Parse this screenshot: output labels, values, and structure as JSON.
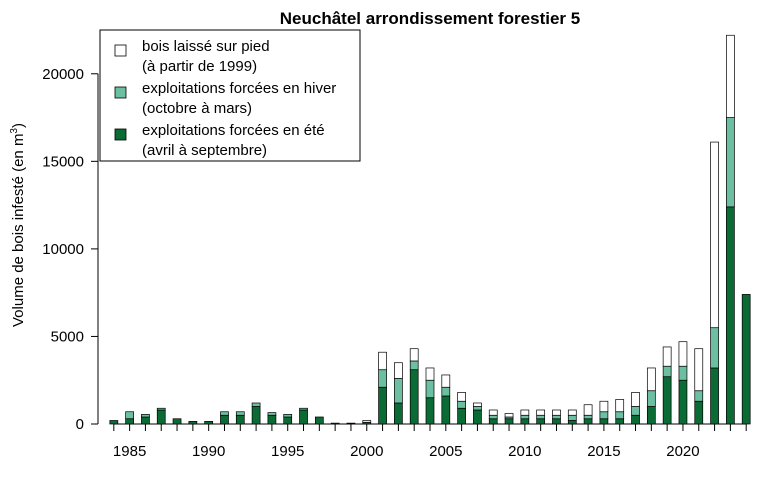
{
  "chart_data": {
    "type": "bar",
    "stacked": true,
    "title": "Neuchâtel arrondissement forestier 5",
    "ylabel": "Volume de bois infesté (en m",
    "ylabel_superscript": "3",
    "ylabel_suffix": ")",
    "ylim": [
      0,
      22500
    ],
    "xlim": [
      1983,
      2025
    ],
    "grid": false,
    "legend_position": "top-left",
    "x_ticks": [
      1985,
      1990,
      1995,
      2000,
      2005,
      2010,
      2015,
      2020
    ],
    "y_ticks": [
      0,
      5000,
      10000,
      15000,
      20000
    ],
    "x": [
      1984,
      1985,
      1986,
      1987,
      1988,
      1989,
      1990,
      1991,
      1992,
      1993,
      1994,
      1995,
      1996,
      1997,
      1998,
      1999,
      2000,
      2001,
      2002,
      2003,
      2004,
      2005,
      2006,
      2007,
      2008,
      2009,
      2010,
      2011,
      2012,
      2013,
      2014,
      2015,
      2016,
      2017,
      2018,
      2019,
      2020,
      2021,
      2022,
      2023,
      2024
    ],
    "series": [
      {
        "name": "exploitations forcées en été (avril à septembre)",
        "legend_lines": [
          "exploitations forcées en été",
          "(avril à septembre)"
        ],
        "color": "#0b6b35",
        "values": [
          200,
          300,
          400,
          800,
          300,
          150,
          150,
          500,
          500,
          1000,
          500,
          400,
          800,
          400,
          50,
          20,
          100,
          2100,
          1200,
          3100,
          1500,
          1600,
          900,
          800,
          300,
          300,
          300,
          300,
          300,
          200,
          300,
          300,
          300,
          500,
          1000,
          2700,
          2500,
          1300,
          3200,
          12400,
          7400
        ]
      },
      {
        "name": "exploitations forcées en hiver (octobre à mars)",
        "legend_lines": [
          "exploitations forcées en hiver",
          "(octobre à mars)"
        ],
        "color": "#6cbfa0",
        "values": [
          0,
          400,
          150,
          100,
          0,
          0,
          0,
          200,
          200,
          200,
          150,
          150,
          100,
          0,
          0,
          0,
          0,
          1000,
          1400,
          500,
          1000,
          500,
          400,
          200,
          200,
          100,
          200,
          200,
          200,
          300,
          200,
          400,
          400,
          500,
          900,
          600,
          800,
          600,
          2300,
          5100,
          0
        ]
      },
      {
        "name": "bois laissé sur pied (à partir de 1999)",
        "legend_lines": [
          "bois laissé sur pied",
          "(à partir de 1999)"
        ],
        "color": "#ffffff",
        "values": [
          0,
          0,
          0,
          0,
          0,
          0,
          0,
          0,
          0,
          0,
          0,
          0,
          0,
          0,
          0,
          30,
          100,
          1000,
          900,
          700,
          700,
          700,
          500,
          200,
          300,
          200,
          300,
          300,
          300,
          300,
          600,
          600,
          700,
          800,
          1300,
          1100,
          1400,
          2400,
          10600,
          4700,
          0
        ]
      }
    ]
  }
}
